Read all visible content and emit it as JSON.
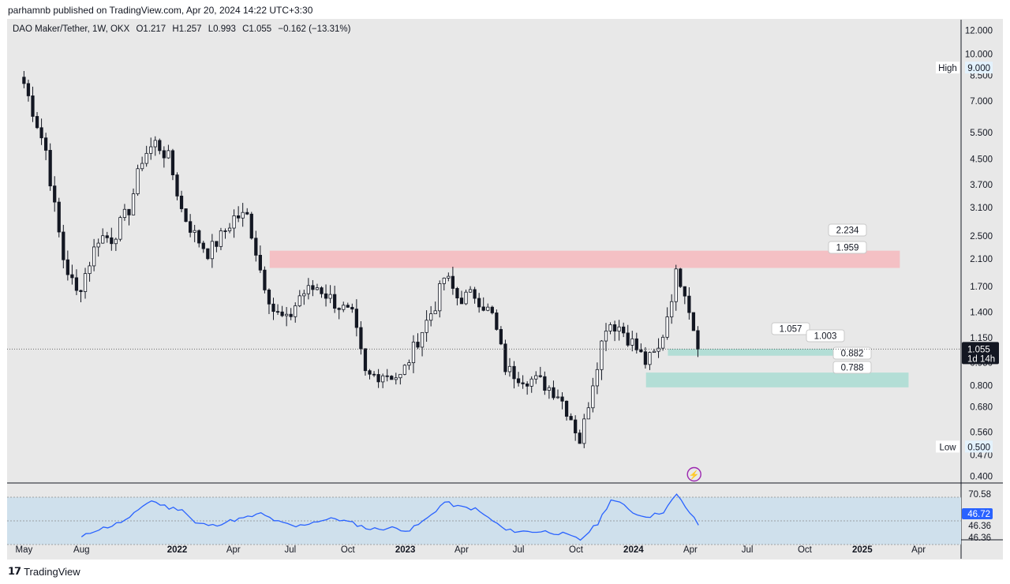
{
  "header": {
    "published": "parhamnb published on TradingView.com, Apr 20, 2024 14:22 UTC+3:30"
  },
  "legend": {
    "symbol": "DAO Maker/Tether, 1W, OKX",
    "open": "O1.217",
    "high": "H1.257",
    "low": "L0.993",
    "close": "C1.055",
    "change": "−0.162 (−13.31%)"
  },
  "footer": {
    "brand": "TradingView",
    "logo_icon": "tradingview-logo-icon"
  },
  "colors": {
    "background": "#e8e8e8",
    "candle": "#131722",
    "resistance_zone": "#f4c0c4",
    "support_zone": "#b3ded6",
    "rsi_line": "#2962ff",
    "rsi_band": "#cfe0ec",
    "flash_icon": "#9c27b0"
  },
  "chart_data": [
    {
      "type": "candlestick",
      "title": "DAO Maker/Tether, 1W, OKX",
      "scale": "log",
      "ylim": [
        0.38,
        13.0
      ],
      "y_ticks": [
        "12.000",
        "10.000",
        "8.500",
        "7.000",
        "5.500",
        "4.500",
        "3.700",
        "3.100",
        "2.500",
        "2.100",
        "1.700",
        "1.400",
        "1.150",
        "0.950",
        "0.800",
        "0.680",
        "0.560",
        "0.470",
        "0.400"
      ],
      "x_ticks": [
        "May",
        "Aug",
        "2022",
        "Apr",
        "Jul",
        "Oct",
        "2023",
        "Apr",
        "Jul",
        "Oct",
        "2024",
        "Apr",
        "Jul",
        "Oct",
        "2025",
        "Apr"
      ],
      "x_bold_ticks": [
        "2022",
        "2023",
        "2024",
        "2025"
      ],
      "markers": [
        {
          "label": "High",
          "value": "9.000"
        },
        {
          "label": "Low",
          "value": "0.500"
        }
      ],
      "last_price": {
        "value": "1.055",
        "countdown": "1d 14h"
      },
      "zones": [
        {
          "name": "resistance",
          "low": 1.959,
          "high": 2.234,
          "labels": [
            "2.234",
            "1.959"
          ]
        },
        {
          "name": "support-upper",
          "low": 1.003,
          "high": 1.057,
          "labels": [
            "1.057",
            "1.003"
          ]
        },
        {
          "name": "support-lower",
          "low": 0.788,
          "high": 0.882,
          "labels": [
            "0.882",
            "0.788"
          ]
        }
      ],
      "anchors": [
        {
          "date": "2021-05-01",
          "close": 8.0
        },
        {
          "date": "2021-06-05",
          "close": 4.8
        },
        {
          "date": "2021-06-20",
          "close": 3.0
        },
        {
          "date": "2021-07-04",
          "close": 2.05
        },
        {
          "date": "2021-07-25",
          "close": 1.6
        },
        {
          "date": "2021-08-08",
          "close": 1.9
        },
        {
          "date": "2021-08-29",
          "close": 2.5
        },
        {
          "date": "2021-09-19",
          "close": 2.45
        },
        {
          "date": "2021-10-17",
          "close": 3.1
        },
        {
          "date": "2021-11-07",
          "close": 4.6
        },
        {
          "date": "2021-11-28",
          "close": 5.1
        },
        {
          "date": "2021-12-19",
          "close": 4.5
        },
        {
          "date": "2022-01-09",
          "close": 3.0
        },
        {
          "date": "2022-01-30",
          "close": 2.5
        },
        {
          "date": "2022-02-20",
          "close": 2.2
        },
        {
          "date": "2022-03-13",
          "close": 2.5
        },
        {
          "date": "2022-04-03",
          "close": 2.9
        },
        {
          "date": "2022-04-24",
          "close": 2.9
        },
        {
          "date": "2022-05-15",
          "close": 1.9
        },
        {
          "date": "2022-06-05",
          "close": 1.4
        },
        {
          "date": "2022-06-26",
          "close": 1.3
        },
        {
          "date": "2022-07-17",
          "close": 1.6
        },
        {
          "date": "2022-08-14",
          "close": 1.7
        },
        {
          "date": "2022-09-11",
          "close": 1.5
        },
        {
          "date": "2022-10-09",
          "close": 1.35
        },
        {
          "date": "2022-10-30",
          "close": 0.85
        },
        {
          "date": "2022-11-27",
          "close": 0.88
        },
        {
          "date": "2022-12-25",
          "close": 0.85
        },
        {
          "date": "2023-01-22",
          "close": 1.15
        },
        {
          "date": "2023-02-19",
          "close": 1.5
        },
        {
          "date": "2023-03-05",
          "close": 1.85
        },
        {
          "date": "2023-03-26",
          "close": 1.55
        },
        {
          "date": "2023-04-23",
          "close": 1.6
        },
        {
          "date": "2023-05-21",
          "close": 1.35
        },
        {
          "date": "2023-06-11",
          "close": 0.9
        },
        {
          "date": "2023-07-09",
          "close": 0.85
        },
        {
          "date": "2023-08-06",
          "close": 0.82
        },
        {
          "date": "2023-09-03",
          "close": 0.75
        },
        {
          "date": "2023-09-24",
          "close": 0.62
        },
        {
          "date": "2023-10-08",
          "close": 0.52
        },
        {
          "date": "2023-10-29",
          "close": 0.85
        },
        {
          "date": "2023-11-19",
          "close": 1.3
        },
        {
          "date": "2023-12-10",
          "close": 1.25
        },
        {
          "date": "2023-12-31",
          "close": 1.1
        },
        {
          "date": "2024-01-21",
          "close": 0.95
        },
        {
          "date": "2024-02-11",
          "close": 1.05
        },
        {
          "date": "2024-02-25",
          "close": 1.4
        },
        {
          "date": "2024-03-10",
          "close": 1.9
        },
        {
          "date": "2024-03-24",
          "close": 1.65
        },
        {
          "date": "2024-04-07",
          "close": 1.217
        },
        {
          "date": "2024-04-14",
          "close": 1.055
        }
      ]
    },
    {
      "type": "line",
      "name": "RSI",
      "ylim": [
        34,
        82
      ],
      "y_ticks": [
        "70.58",
        "46.36",
        "46.36"
      ],
      "band": [
        30,
        70
      ],
      "last_value": "46.72",
      "anchors": [
        {
          "date": "2021-08-01",
          "value": 36
        },
        {
          "date": "2021-08-22",
          "value": 42
        },
        {
          "date": "2021-09-19",
          "value": 46
        },
        {
          "date": "2021-10-17",
          "value": 52
        },
        {
          "date": "2021-11-07",
          "value": 63
        },
        {
          "date": "2021-11-21",
          "value": 67
        },
        {
          "date": "2021-12-19",
          "value": 61
        },
        {
          "date": "2022-01-09",
          "value": 60
        },
        {
          "date": "2022-01-30",
          "value": 48
        },
        {
          "date": "2022-02-27",
          "value": 46
        },
        {
          "date": "2022-03-27",
          "value": 50
        },
        {
          "date": "2022-04-24",
          "value": 53
        },
        {
          "date": "2022-05-15",
          "value": 56
        },
        {
          "date": "2022-06-12",
          "value": 49
        },
        {
          "date": "2022-07-10",
          "value": 45
        },
        {
          "date": "2022-08-14",
          "value": 50
        },
        {
          "date": "2022-09-11",
          "value": 52
        },
        {
          "date": "2022-10-09",
          "value": 48
        },
        {
          "date": "2022-11-06",
          "value": 43
        },
        {
          "date": "2022-12-11",
          "value": 44
        },
        {
          "date": "2023-01-08",
          "value": 42
        },
        {
          "date": "2023-02-05",
          "value": 52
        },
        {
          "date": "2023-03-05",
          "value": 66
        },
        {
          "date": "2023-03-26",
          "value": 62
        },
        {
          "date": "2023-04-23",
          "value": 60
        },
        {
          "date": "2023-05-21",
          "value": 50
        },
        {
          "date": "2023-06-11",
          "value": 42
        },
        {
          "date": "2023-07-09",
          "value": 41
        },
        {
          "date": "2023-08-13",
          "value": 41
        },
        {
          "date": "2023-09-10",
          "value": 39
        },
        {
          "date": "2023-10-08",
          "value": 34
        },
        {
          "date": "2023-11-05",
          "value": 48
        },
        {
          "date": "2023-11-26",
          "value": 68
        },
        {
          "date": "2023-12-17",
          "value": 63
        },
        {
          "date": "2024-01-07",
          "value": 55
        },
        {
          "date": "2024-01-28",
          "value": 54
        },
        {
          "date": "2024-02-18",
          "value": 58
        },
        {
          "date": "2024-03-10",
          "value": 72
        },
        {
          "date": "2024-03-24",
          "value": 62
        },
        {
          "date": "2024-04-14",
          "value": 46.72
        }
      ]
    }
  ]
}
